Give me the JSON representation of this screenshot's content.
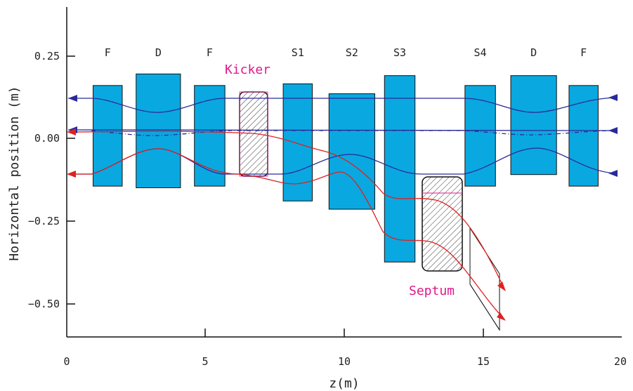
{
  "colors": {
    "magnet_fill": "#0aa8e0",
    "magnet_stroke": "#111111",
    "blue_beam": "#2a2a9a",
    "red_beam": "#e02020",
    "device_label": "#e0188c",
    "axis": "#111111"
  },
  "axes": {
    "x_title": "z(m)",
    "y_title": "Horizontal position (m)",
    "x_ticks": [
      "0",
      "5",
      "10",
      "15",
      "20"
    ],
    "y_ticks": [
      "0.25",
      "0.00",
      "−0.25",
      "−0.50"
    ]
  },
  "magnets": [
    {
      "label": "F",
      "z_start": 0.95,
      "z_end": 2.0,
      "top": 0.16,
      "bottom": -0.145
    },
    {
      "label": "D",
      "z_start": 2.5,
      "z_end": 4.1,
      "top": 0.195,
      "bottom": -0.15
    },
    {
      "label": "F",
      "z_start": 4.6,
      "z_end": 5.7,
      "top": 0.16,
      "bottom": -0.145
    },
    {
      "label": "S1",
      "z_start": 7.8,
      "z_end": 8.85,
      "top": 0.165,
      "bottom": -0.19
    },
    {
      "label": "S2",
      "z_start": 9.45,
      "z_end": 11.1,
      "top": 0.135,
      "bottom": -0.215
    },
    {
      "label": "S3",
      "z_start": 11.45,
      "z_end": 12.55,
      "top": 0.19,
      "bottom": -0.375
    },
    {
      "label": "S4",
      "z_start": 14.35,
      "z_end": 15.45,
      "top": 0.16,
      "bottom": -0.145
    },
    {
      "label": "D",
      "z_start": 16.0,
      "z_end": 17.65,
      "top": 0.19,
      "bottom": -0.11
    },
    {
      "label": "F",
      "z_start": 18.1,
      "z_end": 19.15,
      "top": 0.16,
      "bottom": -0.145
    }
  ],
  "devices": {
    "kicker": {
      "label": "Kicker"
    },
    "septum": {
      "label": "Septum"
    }
  }
}
